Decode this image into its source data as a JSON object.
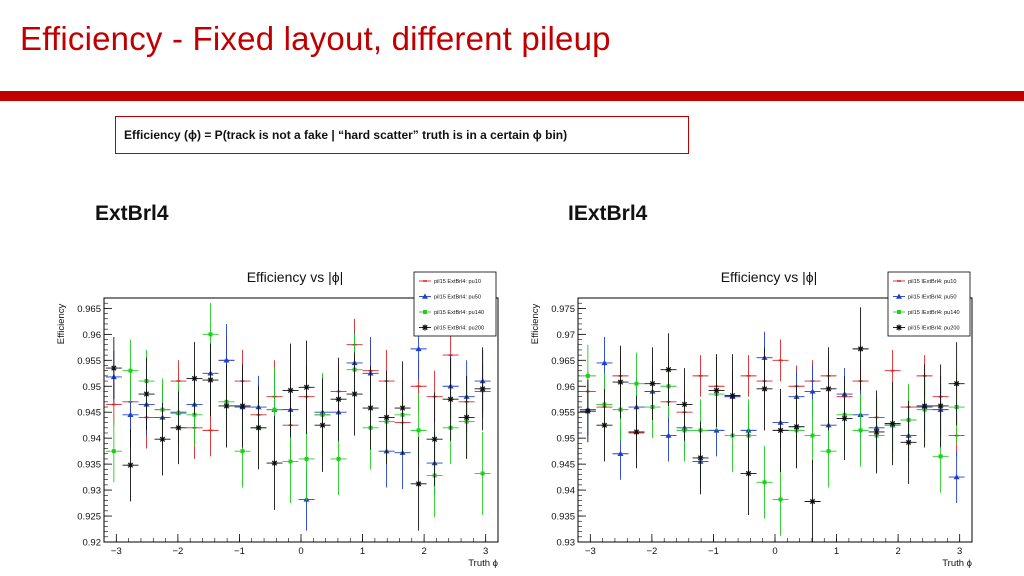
{
  "slide": {
    "title": "Efficiency - Fixed layout, different pileup",
    "definition": "Efficiency (ϕ) = P(track is not a fake | “hard scatter” truth is in a certain ϕ bin)",
    "left_label": "ExtBrl4",
    "right_label": "IExtBrl4"
  },
  "chart_data": [
    {
      "type": "scatter",
      "title": "Efficiency vs |ϕ|",
      "xlabel": "Truth ϕ",
      "ylabel": "Efficiency",
      "xlim": [
        -3.2,
        3.2
      ],
      "ylim": [
        0.92,
        0.967
      ],
      "yticks": [
        0.92,
        0.925,
        0.93,
        0.935,
        0.94,
        0.945,
        0.95,
        0.955,
        0.96,
        0.965
      ],
      "ytick_labels": [
        "0.92",
        "0.925",
        "0.93",
        "0.935",
        "0.94",
        "0.945",
        "0.95",
        "0.955",
        "0.96",
        "0.965"
      ],
      "xticks": [
        -3,
        -2,
        -1,
        0,
        1,
        2,
        3
      ],
      "xtick_labels": [
        "−3",
        "−2",
        "−1",
        "0",
        "1",
        "2",
        "3"
      ],
      "legend_position": "top-right",
      "grid": false,
      "series": [
        {
          "name": "pil15 ExtBrl4: pu10",
          "color": "#d62728",
          "marker": "dash",
          "x": [
            -3.04,
            -2.77,
            -2.51,
            -2.25,
            -1.99,
            -1.73,
            -1.47,
            -1.21,
            -0.95,
            -0.69,
            -0.43,
            -0.17,
            0.09,
            0.35,
            0.61,
            0.87,
            1.13,
            1.39,
            1.65,
            1.91,
            2.17,
            2.43,
            2.69,
            2.95
          ],
          "y": [
            0.9465,
            0.947,
            0.944,
            0.9455,
            0.951,
            0.942,
            0.9415,
            0.955,
            0.951,
            0.9445,
            0.948,
            0.9425,
            0.948,
            0.9445,
            0.949,
            0.958,
            0.953,
            0.951,
            0.943,
            0.95,
            0.948,
            0.956,
            0.947,
            0.949
          ],
          "err": [
            0.004,
            0.005,
            0.006,
            0.005,
            0.004,
            0.006,
            0.005,
            0.005,
            0.006,
            0.006,
            0.007,
            0.007,
            0.006,
            0.006,
            0.005,
            0.005,
            0.006,
            0.006,
            0.005,
            0.005,
            0.005,
            0.005,
            0.005,
            0.005
          ]
        },
        {
          "name": "pil15 ExtBrl4: pu50",
          "color": "#1f3fd0",
          "marker": "triangle",
          "x": [
            -3.04,
            -2.77,
            -2.51,
            -2.25,
            -1.99,
            -1.73,
            -1.47,
            -1.21,
            -0.95,
            -0.69,
            -0.43,
            -0.17,
            0.09,
            0.35,
            0.61,
            0.87,
            1.13,
            1.39,
            1.65,
            1.91,
            2.17,
            2.43,
            2.69,
            2.95
          ],
          "y": [
            0.9518,
            0.9445,
            0.9465,
            0.944,
            0.945,
            0.9465,
            0.9525,
            0.955,
            0.946,
            0.946,
            0.9455,
            0.9455,
            0.9282,
            0.945,
            0.945,
            0.9545,
            0.9525,
            0.9375,
            0.9372,
            0.9572,
            0.9352,
            0.95,
            0.948,
            0.951
          ],
          "err": [
            0.005,
            0.006,
            0.006,
            0.005,
            0.005,
            0.006,
            0.006,
            0.007,
            0.006,
            0.006,
            0.007,
            0.007,
            0.006,
            0.007,
            0.006,
            0.006,
            0.007,
            0.007,
            0.007,
            0.006,
            0.006,
            0.006,
            0.007,
            0.006
          ]
        },
        {
          "name": "pil15 ExtBrl4: pu140",
          "color": "#22cc22",
          "marker": "square",
          "x": [
            -3.04,
            -2.77,
            -2.51,
            -2.25,
            -1.99,
            -1.73,
            -1.47,
            -1.21,
            -0.95,
            -0.69,
            -0.43,
            -0.17,
            0.09,
            0.35,
            0.61,
            0.87,
            1.13,
            1.39,
            1.65,
            1.91,
            2.17,
            2.43,
            2.69,
            2.95
          ],
          "y": [
            0.9375,
            0.953,
            0.951,
            0.9455,
            0.9448,
            0.9445,
            0.96,
            0.947,
            0.9375,
            0.942,
            0.9455,
            0.9355,
            0.936,
            0.9445,
            0.936,
            0.9532,
            0.942,
            0.9432,
            0.9445,
            0.9415,
            0.9328,
            0.942,
            0.9432,
            0.9332
          ],
          "err": [
            0.006,
            0.006,
            0.006,
            0.006,
            0.006,
            0.006,
            0.006,
            0.006,
            0.007,
            0.007,
            0.008,
            0.008,
            0.008,
            0.008,
            0.007,
            0.007,
            0.008,
            0.008,
            0.007,
            0.007,
            0.008,
            0.007,
            0.007,
            0.008
          ]
        },
        {
          "name": "pil15 ExtBrl4: pu200",
          "color": "#111111",
          "marker": "star",
          "x": [
            -3.04,
            -2.77,
            -2.51,
            -2.25,
            -1.99,
            -1.73,
            -1.47,
            -1.21,
            -0.95,
            -0.69,
            -0.43,
            -0.17,
            0.09,
            0.35,
            0.61,
            0.87,
            1.13,
            1.39,
            1.65,
            1.91,
            2.17,
            2.43,
            2.69,
            2.95
          ],
          "y": [
            0.9535,
            0.9348,
            0.9485,
            0.9398,
            0.942,
            0.9515,
            0.9512,
            0.9462,
            0.9462,
            0.942,
            0.9352,
            0.9492,
            0.9498,
            0.9425,
            0.9475,
            0.9485,
            0.9458,
            0.944,
            0.9458,
            0.9312,
            0.9398,
            0.9475,
            0.944,
            0.9495
          ],
          "err": [
            0.006,
            0.007,
            0.007,
            0.007,
            0.007,
            0.007,
            0.007,
            0.008,
            0.008,
            0.008,
            0.009,
            0.009,
            0.009,
            0.009,
            0.008,
            0.008,
            0.008,
            0.009,
            0.009,
            0.009,
            0.009,
            0.008,
            0.008,
            0.008
          ]
        }
      ]
    },
    {
      "type": "scatter",
      "title": "Efficiency vs |ϕ|",
      "xlabel": "Truth ϕ",
      "ylabel": "Efficiency",
      "xlim": [
        -3.2,
        3.2
      ],
      "ylim": [
        0.93,
        0.977
      ],
      "yticks": [
        0.93,
        0.935,
        0.94,
        0.945,
        0.95,
        0.955,
        0.96,
        0.965,
        0.97,
        0.975
      ],
      "ytick_labels": [
        "0.93",
        "0.935",
        "0.94",
        "0.945",
        "0.95",
        "0.955",
        "0.96",
        "0.965",
        "0.97",
        "0.975"
      ],
      "xticks": [
        -3,
        -2,
        -1,
        0,
        1,
        2,
        3
      ],
      "xtick_labels": [
        "−3",
        "−2",
        "−1",
        "0",
        "1",
        "2",
        "3"
      ],
      "legend_position": "top-right",
      "grid": false,
      "series": [
        {
          "name": "pil15 IExtBrl4: pu10",
          "color": "#d62728",
          "marker": "dash",
          "x": [
            -3.04,
            -2.77,
            -2.51,
            -2.25,
            -1.99,
            -1.73,
            -1.47,
            -1.21,
            -0.95,
            -0.69,
            -0.43,
            -0.17,
            0.09,
            0.35,
            0.61,
            0.87,
            1.13,
            1.39,
            1.65,
            1.91,
            2.17,
            2.43,
            2.69,
            2.95
          ],
          "y": [
            0.959,
            0.956,
            0.962,
            0.951,
            0.959,
            0.957,
            0.955,
            0.962,
            0.96,
            0.958,
            0.962,
            0.961,
            0.965,
            0.96,
            0.961,
            0.962,
            0.958,
            0.961,
            0.954,
            0.963,
            0.956,
            0.962,
            0.958,
            0.9505
          ],
          "err": [
            0.004,
            0.004,
            0.004,
            0.004,
            0.004,
            0.004,
            0.004,
            0.004,
            0.004,
            0.004,
            0.004,
            0.004,
            0.004,
            0.004,
            0.004,
            0.004,
            0.004,
            0.004,
            0.004,
            0.004,
            0.004,
            0.004,
            0.004,
            0.004
          ]
        },
        {
          "name": "pil15 IExtBrl4: pu50",
          "color": "#1f3fd0",
          "marker": "triangle",
          "x": [
            -3.04,
            -2.77,
            -2.51,
            -2.25,
            -1.99,
            -1.73,
            -1.47,
            -1.21,
            -0.95,
            -0.69,
            -0.43,
            -0.17,
            0.09,
            0.35,
            0.61,
            0.87,
            1.13,
            1.39,
            1.65,
            1.91,
            2.17,
            2.43,
            2.69,
            2.95
          ],
          "y": [
            0.9555,
            0.9645,
            0.947,
            0.956,
            0.959,
            0.9505,
            0.952,
            0.9455,
            0.9515,
            0.958,
            0.9515,
            0.9655,
            0.953,
            0.958,
            0.959,
            0.9525,
            0.9585,
            0.9545,
            0.952,
            0.9525,
            0.9505,
            0.956,
            0.9555,
            0.9425
          ],
          "err": [
            0.005,
            0.005,
            0.005,
            0.005,
            0.005,
            0.005,
            0.005,
            0.005,
            0.005,
            0.005,
            0.005,
            0.005,
            0.005,
            0.005,
            0.005,
            0.005,
            0.005,
            0.005,
            0.005,
            0.005,
            0.005,
            0.005,
            0.005,
            0.005
          ]
        },
        {
          "name": "pil15 IExtBrl4: pu140",
          "color": "#22cc22",
          "marker": "square",
          "x": [
            -3.04,
            -2.77,
            -2.51,
            -2.25,
            -1.99,
            -1.73,
            -1.47,
            -1.21,
            -0.95,
            -0.69,
            -0.43,
            -0.17,
            0.09,
            0.35,
            0.61,
            0.87,
            1.13,
            1.39,
            1.65,
            1.91,
            2.17,
            2.43,
            2.69,
            2.95
          ],
          "y": [
            0.962,
            0.9565,
            0.9555,
            0.9605,
            0.956,
            0.96,
            0.9515,
            0.9515,
            0.9585,
            0.9505,
            0.9505,
            0.9415,
            0.9382,
            0.9515,
            0.9505,
            0.9475,
            0.9545,
            0.9515,
            0.9505,
            0.9525,
            0.9535,
            0.9555,
            0.9465,
            0.956
          ],
          "err": [
            0.006,
            0.006,
            0.006,
            0.006,
            0.006,
            0.006,
            0.006,
            0.006,
            0.007,
            0.007,
            0.007,
            0.007,
            0.007,
            0.007,
            0.007,
            0.007,
            0.007,
            0.007,
            0.007,
            0.007,
            0.007,
            0.007,
            0.007,
            0.007
          ]
        },
        {
          "name": "pil15 IExtBrl4: pu200",
          "color": "#111111",
          "marker": "star",
          "x": [
            -3.04,
            -2.77,
            -2.51,
            -2.25,
            -1.99,
            -1.73,
            -1.47,
            -1.21,
            -0.95,
            -0.69,
            -0.43,
            -0.17,
            0.09,
            0.35,
            0.61,
            0.87,
            1.13,
            1.39,
            1.65,
            1.91,
            2.17,
            2.43,
            2.69,
            2.95
          ],
          "y": [
            0.9552,
            0.9525,
            0.9608,
            0.9512,
            0.9605,
            0.9632,
            0.9565,
            0.9462,
            0.9592,
            0.9582,
            0.9432,
            0.9595,
            0.9515,
            0.9522,
            0.9378,
            0.9595,
            0.9538,
            0.9672,
            0.9512,
            0.9528,
            0.9492,
            0.9562,
            0.9562,
            0.9605
          ],
          "err": [
            0.006,
            0.007,
            0.007,
            0.007,
            0.007,
            0.007,
            0.007,
            0.007,
            0.007,
            0.008,
            0.008,
            0.008,
            0.008,
            0.008,
            0.008,
            0.008,
            0.008,
            0.008,
            0.008,
            0.008,
            0.008,
            0.008,
            0.008,
            0.008
          ]
        }
      ]
    }
  ]
}
